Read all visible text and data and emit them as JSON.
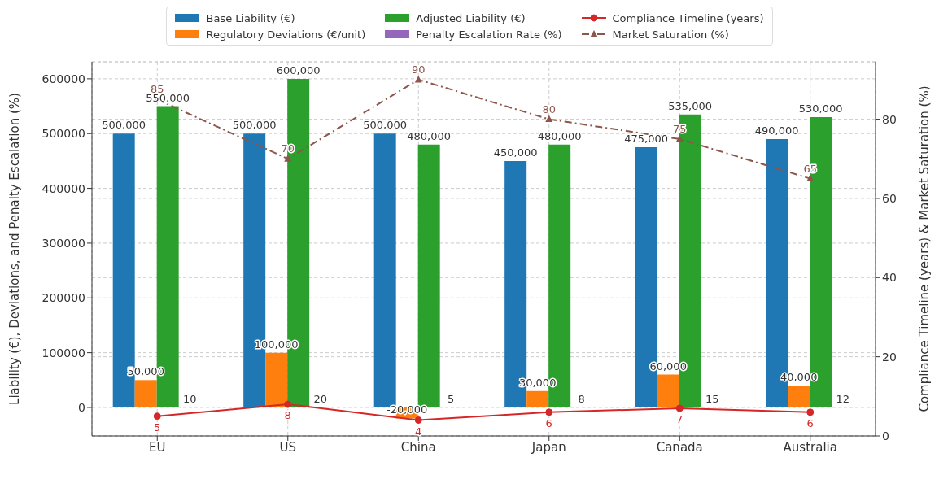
{
  "chart_data": {
    "type": "bar",
    "categories": [
      "EU",
      "US",
      "China",
      "Japan",
      "Canada",
      "Australia"
    ],
    "ylabel": "Liability (€), Deviations, and Penalty Escalation (%)",
    "y2label": "Compliance Timeline (years) & Market Saturation (%)",
    "ylim": [
      -52000,
      631000
    ],
    "yticks": [
      0,
      100000,
      200000,
      300000,
      400000,
      500000,
      600000
    ],
    "y2lim": [
      0,
      94.5
    ],
    "y2ticks": [
      0,
      20,
      40,
      60,
      80
    ],
    "grid": true,
    "legend": "top",
    "series": [
      {
        "name": "Base Liability (€)",
        "color": "#1f77b4",
        "values": [
          500000,
          500000,
          500000,
          450000,
          475000,
          490000
        ],
        "value_labels": [
          "500,000",
          "500,000",
          "500,000",
          "450,000",
          "475,000",
          "490,000"
        ]
      },
      {
        "name": "Regulatory Deviations (€/unit)",
        "color": "#ff7f0e",
        "values": [
          50000,
          100000,
          -20000,
          30000,
          60000,
          40000
        ],
        "value_labels": [
          "50,000",
          "100,000",
          "-20,000",
          "30,000",
          "60,000",
          "40,000"
        ]
      },
      {
        "name": "Adjusted Liability (€)",
        "color": "#2ca02c",
        "values": [
          550000,
          600000,
          480000,
          480000,
          535000,
          530000
        ],
        "value_labels": [
          "550,000",
          "600,000",
          "480,000",
          "480,000",
          "535,000",
          "530,000"
        ]
      },
      {
        "name": "Penalty Escalation Rate (%)",
        "color": "#9467bd",
        "values": [
          10,
          20,
          5,
          8,
          15,
          12
        ],
        "value_labels": [
          "10",
          "20",
          "5",
          "8",
          "15",
          "12"
        ]
      },
      {
        "name": "Compliance Timeline (years)",
        "type": "line",
        "axis": "y2",
        "color": "#d62728",
        "marker": "circle",
        "line_style": "solid",
        "values": [
          5,
          8,
          4,
          6,
          7,
          6
        ],
        "value_labels": [
          "5",
          "8",
          "4",
          "6",
          "7",
          "6"
        ]
      },
      {
        "name": "Market Saturation (%)",
        "type": "line",
        "axis": "y2",
        "color": "#8c564b",
        "marker": "triangle",
        "line_style": "dashed",
        "values": [
          85,
          70,
          90,
          80,
          75,
          65
        ],
        "value_labels": [
          "85",
          "70",
          "90",
          "80",
          "75",
          "65"
        ]
      }
    ]
  }
}
